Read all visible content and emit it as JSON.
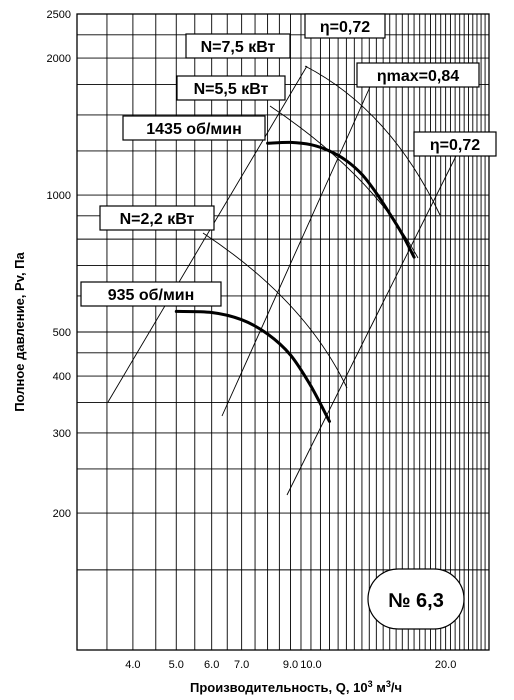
{
  "chart_data": {
    "type": "line",
    "title": "",
    "xlabel": "Производительность, Q, 10³ м³/ч",
    "ylabel": "Полное давление, Pv, Па",
    "x_scale": "log",
    "y_scale": "log",
    "xlim": [
      3.0,
      25.0
    ],
    "ylim": [
      100,
      2500
    ],
    "grid": true,
    "x_ticks": [
      {
        "value": 4.0,
        "label": "4.0"
      },
      {
        "value": 5.0,
        "label": "5.0"
      },
      {
        "value": 6.0,
        "label": "6.0"
      },
      {
        "value": 7.0,
        "label": "7.0"
      },
      {
        "value": 9.0,
        "label": "9.0"
      },
      {
        "value": 10.0,
        "label": "10.0"
      },
      {
        "value": 20.0,
        "label": "20.0"
      }
    ],
    "y_ticks": [
      {
        "value": 2500,
        "label": "2500"
      },
      {
        "value": 2000,
        "label": "2000"
      },
      {
        "value": 1000,
        "label": "1000"
      },
      {
        "value": 500,
        "label": "500"
      },
      {
        "value": 400,
        "label": "400"
      },
      {
        "value": 300,
        "label": "300"
      },
      {
        "value": 200,
        "label": "200"
      }
    ],
    "series": [
      {
        "name": "1435 об/мин",
        "x": [
          8.0,
          9.0,
          10.0,
          11.0,
          12.0,
          13.0,
          14.0,
          15.0,
          16.0,
          17.0
        ],
        "y": [
          1300,
          1305,
          1290,
          1250,
          1190,
          1110,
          1010,
          910,
          820,
          730
        ]
      },
      {
        "name": "935 об/мин",
        "x": [
          5.0,
          6.0,
          7.0,
          8.0,
          9.0,
          10.0,
          11.0
        ],
        "y": [
          555,
          552,
          532,
          495,
          445,
          380,
          318
        ]
      }
    ],
    "annotations": [
      {
        "text": "η=0,72"
      },
      {
        "text": "N=7,5 кВт"
      },
      {
        "text": "ηmax=0,84"
      },
      {
        "text": "N=5,5 кВт"
      },
      {
        "text": "1435 об/мин"
      },
      {
        "text": "η=0,72"
      },
      {
        "text": "N=2,2 кВт"
      },
      {
        "text": "935 об/мин"
      }
    ],
    "badge": "№ 6,3"
  }
}
